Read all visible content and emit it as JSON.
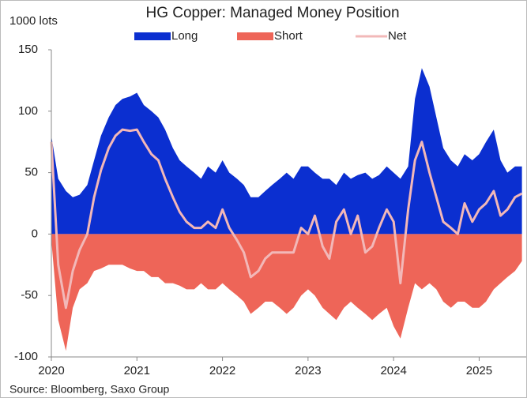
{
  "chart_data": {
    "type": "area",
    "title": "HG Copper: Managed Money Position",
    "y_label": "1000 lots",
    "source": "Source: Bloomberg, Saxo Group",
    "x": [
      2020,
      2020.08,
      2020.17,
      2020.25,
      2020.33,
      2020.42,
      2020.5,
      2020.58,
      2020.67,
      2020.75,
      2020.83,
      2020.92,
      2021,
      2021.08,
      2021.17,
      2021.25,
      2021.33,
      2021.42,
      2021.5,
      2021.58,
      2021.67,
      2021.75,
      2021.83,
      2021.92,
      2022,
      2022.08,
      2022.17,
      2022.25,
      2022.33,
      2022.42,
      2022.5,
      2022.58,
      2022.67,
      2022.75,
      2022.83,
      2022.92,
      2023,
      2023.08,
      2023.17,
      2023.25,
      2023.33,
      2023.42,
      2023.5,
      2023.58,
      2023.67,
      2023.75,
      2023.83,
      2023.92,
      2024,
      2024.08,
      2024.17,
      2024.25,
      2024.33,
      2024.42,
      2024.5,
      2024.58,
      2024.67,
      2024.75,
      2024.83,
      2024.92,
      2025,
      2025.08,
      2025.17,
      2025.25,
      2025.33,
      2025.42,
      2025.5
    ],
    "series": [
      {
        "name": "Long",
        "type": "area",
        "color": "#0b2fd0",
        "values": [
          80,
          45,
          35,
          30,
          32,
          40,
          60,
          80,
          95,
          105,
          110,
          112,
          115,
          105,
          100,
          95,
          85,
          70,
          60,
          55,
          50,
          45,
          55,
          50,
          60,
          50,
          45,
          40,
          30,
          30,
          35,
          40,
          45,
          50,
          45,
          55,
          55,
          50,
          45,
          45,
          40,
          50,
          45,
          48,
          50,
          45,
          48,
          55,
          50,
          45,
          55,
          110,
          135,
          120,
          95,
          70,
          60,
          55,
          65,
          60,
          65,
          75,
          85,
          60,
          50,
          55,
          55
        ]
      },
      {
        "name": "Short",
        "type": "area",
        "color": "#ee6558",
        "values": [
          -5,
          -70,
          -95,
          -60,
          -45,
          -40,
          -30,
          -28,
          -25,
          -25,
          -25,
          -28,
          -30,
          -30,
          -35,
          -35,
          -40,
          -40,
          -42,
          -45,
          -45,
          -40,
          -45,
          -45,
          -40,
          -45,
          -50,
          -55,
          -65,
          -60,
          -55,
          -55,
          -60,
          -65,
          -60,
          -50,
          -45,
          -50,
          -60,
          -65,
          -70,
          -60,
          -55,
          -60,
          -65,
          -70,
          -65,
          -60,
          -75,
          -85,
          -60,
          -40,
          -45,
          -40,
          -45,
          -55,
          -60,
          -55,
          -55,
          -60,
          -60,
          -55,
          -45,
          -40,
          -35,
          -30,
          -22
        ]
      },
      {
        "name": "Net",
        "type": "line",
        "color": "#f2b8b8",
        "values": [
          75,
          -25,
          -60,
          -30,
          -13,
          0,
          30,
          52,
          70,
          80,
          85,
          84,
          85,
          75,
          65,
          60,
          45,
          30,
          18,
          10,
          5,
          5,
          10,
          5,
          20,
          5,
          -5,
          -15,
          -35,
          -30,
          -20,
          -15,
          -15,
          -15,
          -15,
          5,
          0,
          15,
          -10,
          -20,
          10,
          20,
          0,
          15,
          -15,
          -10,
          5,
          20,
          10,
          -40,
          20,
          60,
          75,
          50,
          30,
          10,
          5,
          0,
          25,
          10,
          20,
          25,
          35,
          15,
          20,
          30,
          33
        ]
      }
    ],
    "xlim": [
      2020,
      2025.55
    ],
    "xticks": [
      2020,
      2021,
      2022,
      2023,
      2024,
      2025
    ],
    "ylim": [
      -100,
      150
    ],
    "yticks": [
      -100,
      -50,
      0,
      50,
      100,
      150
    ]
  }
}
